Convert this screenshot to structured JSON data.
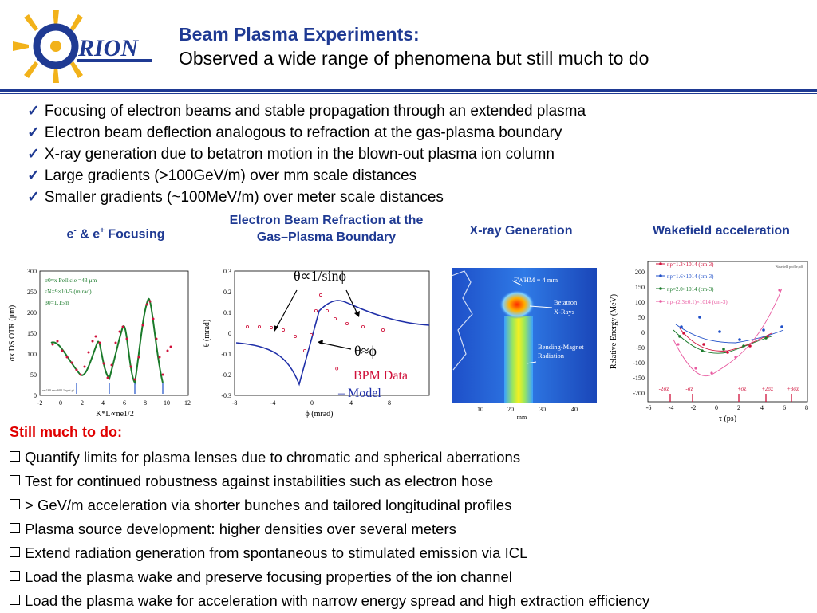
{
  "logo": {
    "text": "ORION",
    "icon": "sun-ray-logo-icon"
  },
  "title": {
    "line1": "Beam Plasma Experiments:",
    "line2": "Observed a wide range of phenomena but still much to do"
  },
  "achievements": [
    "Focusing of electron beams and stable propagation through an extended plasma",
    "Electron beam deflection analogous to refraction at the gas-plasma boundary",
    "X-ray generation due to betatron motion in the blown-out plasma ion column",
    "Large gradients (>100GeV/m) over mm scale distances",
    "Smaller gradients (~100MeV/m) over meter  scale distances"
  ],
  "captions": {
    "focusing_pre": "e",
    "focusing_sup1": "-",
    "focusing_mid": " & e",
    "focusing_sup2": "+",
    "focusing_post": " Focusing",
    "refraction_line1": "Electron Beam Refraction at the",
    "refraction_line2": "Gas–Plasma Boundary",
    "xray": "X-ray Generation",
    "wakefield": "Wakefield acceleration"
  },
  "plot1": {
    "ylabel": "σx DS OTR (μm)",
    "xlabel": "K*L∝ne1/2",
    "yticks": [
      "0",
      "50",
      "100",
      "150",
      "200",
      "250",
      "300"
    ],
    "xticks": [
      "-2",
      "0",
      "2",
      "4",
      "6",
      "8",
      "10",
      "12"
    ],
    "legend": [
      "σ0≈x Pellicle =43 μm",
      "εN=9×10-5 (m rad)",
      "β0=1.15m"
    ],
    "footnote": "ee-160 neo-600.1 spot pi"
  },
  "plot2": {
    "ylabel": "θ (mrad)",
    "xlabel": "ϕ (mrad)",
    "yticks": [
      "0.3",
      "0.2",
      "0.1",
      "0",
      "-0.1",
      "-0.2",
      "-0.3"
    ],
    "xticks": [
      "-8",
      "-4",
      "0",
      "4",
      "8"
    ],
    "annotation1": "θ∝1/sinϕ",
    "annotation2": "θ≈ϕ",
    "legend_data": "BPM Data",
    "legend_data_marker": "º",
    "legend_model": "– Model"
  },
  "plot3": {
    "labels": [
      "FWHM = 4 mm",
      "Betatron",
      "X-Rays",
      "Bending-Magnet",
      "Radiation"
    ],
    "xticks": [
      "10",
      "20",
      "30",
      "40"
    ],
    "xlabel": "mm"
  },
  "plot4": {
    "ylabel": "Relative Energy (MeV)",
    "xlabel": "τ (ps)",
    "yticks": [
      "200",
      "150",
      "100",
      "50",
      "0",
      "-50",
      "-100",
      "-150",
      "-200"
    ],
    "xticks": [
      "-6",
      "-4",
      "-2",
      "0",
      "2",
      "4",
      "6",
      "8"
    ],
    "legend": [
      "np=1.3×1014 (cm-3)",
      "np=1.6×1014 (cm-3)",
      "np=2.0×1014 (cm-3)",
      "np=(2.3±0.1)×1014 (cm-3)"
    ],
    "sigma_labels": [
      "-2σz",
      "-σz",
      "+σz",
      "+2σz",
      "+3σz"
    ],
    "corner_note": "Wakefield profile.pdf",
    "colors": [
      "#d0103a",
      "#1f4fc8",
      "#1a7a2a",
      "#e85aa0"
    ]
  },
  "still_heading": "Still much to do:",
  "todo": [
    "Quantify limits for plasma lenses due to chromatic and spherical aberrations",
    "Test for continued robustness against instabilities such as electron hose",
    "> GeV/m acceleration via shorter bunches and tailored longitudinal profiles",
    "Plasma source development: higher densities over several meters",
    "Extend radiation generation from spontaneous to stimulated emission via ICL",
    "Load the plasma wake and preserve focusing properties of the ion channel",
    "Load the plasma wake for acceleration with narrow energy spread and high extraction efficiency"
  ]
}
